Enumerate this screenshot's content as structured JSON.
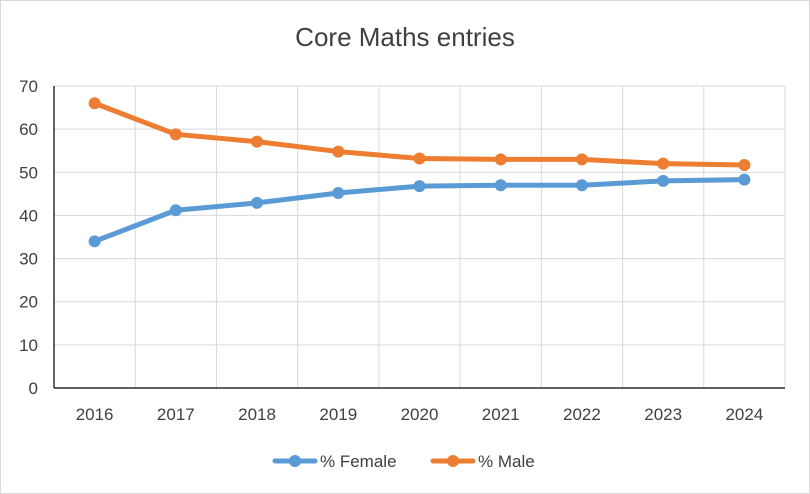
{
  "chart_data": {
    "type": "line",
    "title": "Core Maths entries",
    "xlabel": "",
    "ylabel": "",
    "categories": [
      "2016",
      "2017",
      "2018",
      "2019",
      "2020",
      "2021",
      "2022",
      "2023",
      "2024"
    ],
    "series": [
      {
        "name": "% Female",
        "color": "#5b9bd5",
        "values": [
          34,
          41.2,
          42.9,
          45.2,
          46.8,
          47,
          47,
          48,
          48.3
        ]
      },
      {
        "name": "% Male",
        "color": "#ed7d31",
        "values": [
          66,
          58.8,
          57.1,
          54.8,
          53.2,
          53,
          53,
          52,
          51.7
        ]
      }
    ],
    "ylim": [
      0,
      70
    ],
    "yticks": [
      "0",
      "10",
      "20",
      "30",
      "40",
      "50",
      "60",
      "70"
    ],
    "grid": true,
    "legend": "bottom"
  }
}
